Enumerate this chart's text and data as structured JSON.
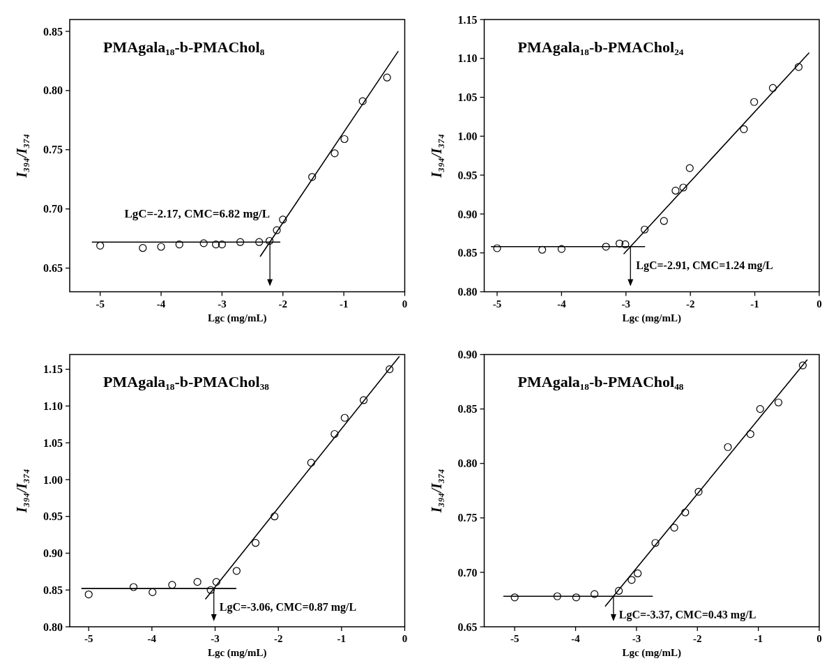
{
  "chart_data": [
    {
      "type": "scatter",
      "title": "PMAgala₁₈-b-PMAChol₈",
      "xlabel": "Lgc (mg/mL)",
      "ylabel": "I₃₉₄/I₃₇₄",
      "annotations": [
        "LgC=-2.17, CMC=6.82 mg/L"
      ],
      "xlim": [
        -5.5,
        0
      ],
      "ylim": [
        0.63,
        0.86
      ],
      "xticks": [
        -5,
        -4,
        -3,
        -2,
        -1,
        0
      ],
      "yticks": [
        {
          "value": 0.65,
          "label": "0.65"
        },
        {
          "value": 0.7,
          "label": "0.70"
        },
        {
          "value": 0.75,
          "label": "0.75"
        },
        {
          "value": 0.8,
          "label": "0.80"
        },
        {
          "value": 0.85,
          "label": "0.85"
        }
      ],
      "series": [
        {
          "marker": "circle",
          "color": "#000000",
          "x": [
            -5,
            -4.3,
            -4,
            -3.7,
            -3.3,
            -3.1,
            -3,
            -2.7,
            -2.39,
            -2.22,
            -2.1,
            -2,
            -1.52,
            -1.15,
            -0.99,
            -0.69,
            -0.29
          ],
          "values": [
            0.669,
            0.667,
            0.668,
            0.67,
            0.671,
            0.67,
            0.67,
            0.672,
            0.672,
            0.673,
            0.682,
            0.691,
            0.727,
            0.747,
            0.759,
            0.791,
            0.811
          ]
        },
        {
          "type": "line",
          "color": "#000000",
          "x": [
            -5.13,
            -2.05
          ],
          "values": [
            0.672,
            0.672
          ]
        },
        {
          "type": "line",
          "color": "#000000",
          "x": [
            -2.37,
            -0.11
          ],
          "values": [
            0.66,
            0.833
          ]
        }
      ]
    },
    {
      "type": "scatter",
      "title": "PMAgala₁₈-b-PMAChol₂₄",
      "xlabel": "Lgc (mg/mL)",
      "ylabel": "I₃₉₄/I₃₇₄",
      "annotations": [
        "LgC=-2.91, CMC=1.24 mg/L"
      ],
      "xlim": [
        -5.2,
        0
      ],
      "ylim": [
        0.8,
        1.15
      ],
      "xticks": [
        -5,
        -4,
        -3,
        -2,
        -1,
        0
      ],
      "yticks": [
        {
          "value": 0.8,
          "label": "0.80"
        },
        0.85,
        {
          "value": 0.9,
          "label": "0.90"
        },
        0.95,
        {
          "value": 1,
          "label": "1.00"
        },
        1.05,
        {
          "value": 1.1,
          "label": "1.10"
        },
        1.15
      ],
      "series": [
        {
          "marker": "circle",
          "color": "#000000",
          "x": [
            -5,
            -4.3,
            -4,
            -3.31,
            -3.1,
            -3.01,
            -2.71,
            -2.41,
            -2.23,
            -2.11,
            -2.01,
            -1.17,
            -1.01,
            -0.72,
            -0.32
          ],
          "values": [
            0.856,
            0.854,
            0.855,
            0.858,
            0.862,
            0.861,
            0.88,
            0.891,
            0.93,
            0.934,
            0.959,
            1.009,
            1.044,
            1.062,
            1.089
          ]
        },
        {
          "type": "line",
          "color": "#000000",
          "x": [
            -5.09,
            -2.71
          ],
          "values": [
            0.858,
            0.858
          ]
        },
        {
          "type": "line",
          "color": "#000000",
          "x": [
            -3.03,
            -0.16
          ],
          "values": [
            0.849,
            1.107
          ]
        }
      ]
    },
    {
      "type": "scatter",
      "title": "PMAgala₁₈-b-PMAChol₃₈",
      "xlabel": "Lgc (mg/mL)",
      "ylabel": "I₃₉₄/I₃₇₄",
      "annotations": [
        "LgC=-3.06, CMC=0.87 mg/L"
      ],
      "xlim": [
        -5.3,
        0
      ],
      "ylim": [
        0.8,
        1.17
      ],
      "xticks": [
        -5,
        -4,
        -3,
        -2,
        -1,
        0
      ],
      "yticks": [
        {
          "value": 0.8,
          "label": "0.80"
        },
        0.85,
        {
          "value": 0.9,
          "label": "0.90"
        },
        0.95,
        {
          "value": 1,
          "label": "1.00"
        },
        1.05,
        {
          "value": 1.1,
          "label": "1.10"
        },
        1.15
      ],
      "series": [
        {
          "marker": "circle",
          "color": "#000000",
          "x": [
            -5,
            -4.29,
            -3.99,
            -3.68,
            -3.28,
            -3.07,
            -2.98,
            -2.66,
            -2.36,
            -2.06,
            -1.48,
            -1.11,
            -0.95,
            -0.65,
            -0.24
          ],
          "values": [
            0.844,
            0.854,
            0.847,
            0.857,
            0.861,
            0.85,
            0.861,
            0.876,
            0.914,
            0.95,
            1.023,
            1.062,
            1.084,
            1.108,
            1.15
          ]
        },
        {
          "type": "line",
          "color": "#000000",
          "x": [
            -5.11,
            -2.67
          ],
          "values": [
            0.852,
            0.852
          ]
        },
        {
          "type": "line",
          "color": "#000000",
          "x": [
            -3.15,
            -0.09
          ],
          "values": [
            0.838,
            1.167
          ]
        }
      ]
    },
    {
      "type": "scatter",
      "title": "PMAgala₁₈-b-PMAChol₄₈",
      "xlabel": "Lgc (mg/mL)",
      "ylabel": "I₃₉₄/I₃₇₄",
      "annotations": [
        "LgC=-3.37, CMC=0.43 mg/L"
      ],
      "xlim": [
        -5.5,
        0
      ],
      "ylim": [
        0.65,
        0.9
      ],
      "xticks": [
        -5,
        -4,
        -3,
        -2,
        -1,
        0
      ],
      "yticks": [
        0.65,
        {
          "value": 0.7,
          "label": "0.70"
        },
        0.75,
        {
          "value": 0.8,
          "label": "0.80"
        },
        0.85,
        {
          "value": 0.9,
          "label": "0.90"
        }
      ],
      "series": [
        {
          "marker": "circle",
          "color": "#000000",
          "x": [
            -5,
            -4.3,
            -3.99,
            -3.69,
            -3.29,
            -3.08,
            -2.98,
            -2.69,
            -2.38,
            -2.2,
            -1.98,
            -1.5,
            -1.13,
            -0.97,
            -0.67,
            -0.27
          ],
          "values": [
            0.677,
            0.678,
            0.677,
            0.68,
            0.683,
            0.693,
            0.699,
            0.727,
            0.741,
            0.755,
            0.774,
            0.815,
            0.827,
            0.85,
            0.856,
            0.89
          ]
        },
        {
          "type": "line",
          "color": "#000000",
          "x": [
            -5.18,
            -2.74
          ],
          "values": [
            0.678,
            0.678
          ]
        },
        {
          "type": "line",
          "color": "#000000",
          "x": [
            -3.51,
            -0.2
          ],
          "values": [
            0.669,
            0.895
          ]
        }
      ]
    }
  ]
}
